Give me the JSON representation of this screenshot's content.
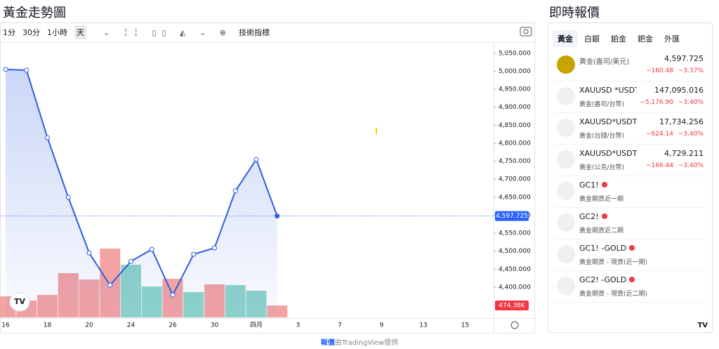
{
  "chart_data": {
    "type": "line",
    "title": "黃金走勢圖",
    "categories": [
      "16",
      null,
      "18",
      null,
      "20",
      null,
      "24",
      null,
      "26",
      null,
      "30",
      null,
      "四月",
      null,
      "3",
      null,
      "7",
      null,
      "9",
      null,
      "13",
      null,
      "15"
    ],
    "values": [
      5005,
      5003,
      4815.6,
      4649.6,
      4495.3,
      4405.5,
      4471.9,
      4505.1,
      4378.1,
      4491.4,
      4509,
      4667.2,
      4755.1,
      4597.725,
      null,
      null,
      null,
      null,
      null,
      null,
      null,
      null,
      null
    ],
    "value_labels": [
      null,
      null,
      null,
      null,
      null,
      null,
      null,
      null,
      null,
      null,
      null,
      null,
      null,
      "4,597.725",
      null,
      null,
      null,
      null,
      null,
      null,
      null,
      null,
      null
    ],
    "color": "#2f5fe0",
    "volume": {
      "values": [
        837,
        670,
        893,
        1758,
        1507,
        2735,
        2093,
        1228,
        1535,
        1005,
        1312,
        1284,
        1060,
        474.38,
        null,
        null,
        null,
        null,
        null,
        null,
        null,
        null,
        null
      ],
      "value_labels": [
        null,
        null,
        null,
        null,
        null,
        null,
        null,
        null,
        null,
        null,
        null,
        null,
        null,
        "474.38K",
        null,
        null,
        null,
        null,
        null,
        null,
        null,
        null,
        null
      ],
      "colors": [
        "#f4a3a3",
        "#f4a3a3",
        "#f4a3a3",
        "#f4a3a3",
        "#f4a3a3",
        "#f4a3a3",
        "#8fd4cb",
        "#8fd4cb",
        "#f4a3a3",
        "#8fd4cb",
        "#f4a3a3",
        "#8fd4cb",
        "#8fd4cb",
        "#f4a3a3",
        null,
        null,
        null,
        null,
        null,
        null,
        null,
        null,
        null
      ],
      "lim": [
        0,
        10880
      ]
    },
    "ylim": [
      4316,
      5077
    ],
    "yticks": [
      {
        "value": 5050,
        "label": "5,050.000"
      },
      {
        "value": 5000,
        "label": "5,000.000"
      },
      {
        "value": 4950,
        "label": "4,950.000"
      },
      {
        "value": 4900,
        "label": "4,900.000"
      },
      {
        "value": 4850,
        "label": "4,850.000"
      },
      {
        "value": 4800,
        "label": "4,800.000"
      },
      {
        "value": 4750,
        "label": "4,750.000"
      },
      {
        "value": 4700,
        "label": "4,700.000"
      },
      {
        "value": 4650,
        "label": "4,650.000"
      },
      {
        "value": 4600,
        "label": "4,600.000"
      },
      {
        "value": 4550,
        "label": "4,550.000"
      },
      {
        "value": 4500,
        "label": "4,500.000"
      },
      {
        "value": 4450,
        "label": "4,450.000"
      },
      {
        "value": 4400,
        "label": "4,400.000"
      }
    ]
  },
  "toolbar": {
    "intervals": [
      "1分",
      "30分",
      "1小時",
      "天"
    ],
    "indicators": "技術指標"
  },
  "footer": {
    "link": "報價",
    "text": "由TradingView提供"
  },
  "quotes": {
    "title": "即時報價",
    "tabs": [
      "黃金",
      "白銀",
      "鉑金",
      "鈀金",
      "外匯"
    ],
    "rows": [
      {
        "name": "黃金(盎司/美元)",
        "price": "4,597.725",
        "change": "−160.48",
        "pct": "−3.37%"
      },
      {
        "name": "XAUUSD *USDTW",
        "sub": "黃金(盎司/台幣)",
        "price": "147,095.016",
        "change": "−5,176.90",
        "pct": "−3.40%"
      },
      {
        "name": "XAUUSD*USDTWD",
        "sub": "黃金(台錢/台幣)",
        "price": "17,734.256",
        "change": "−624.14",
        "pct": "−3.40%"
      },
      {
        "name": "XAUUSD*USDTWD",
        "sub": "黃金(公克/台幣)",
        "price": "4,729.211",
        "change": "−166.44",
        "pct": "−3.40%"
      },
      {
        "name": "GC1!",
        "sub": "黃金期貨近一期"
      },
      {
        "name": "GC2!",
        "sub": "黃金期貨近二期"
      },
      {
        "name": "GC1! -GOLD",
        "sub": "黃金期貨 - 現貨(近一期)"
      },
      {
        "name": "GC2! -GOLD",
        "sub": "黃金期貨 - 現貨(近二期)"
      }
    ]
  }
}
